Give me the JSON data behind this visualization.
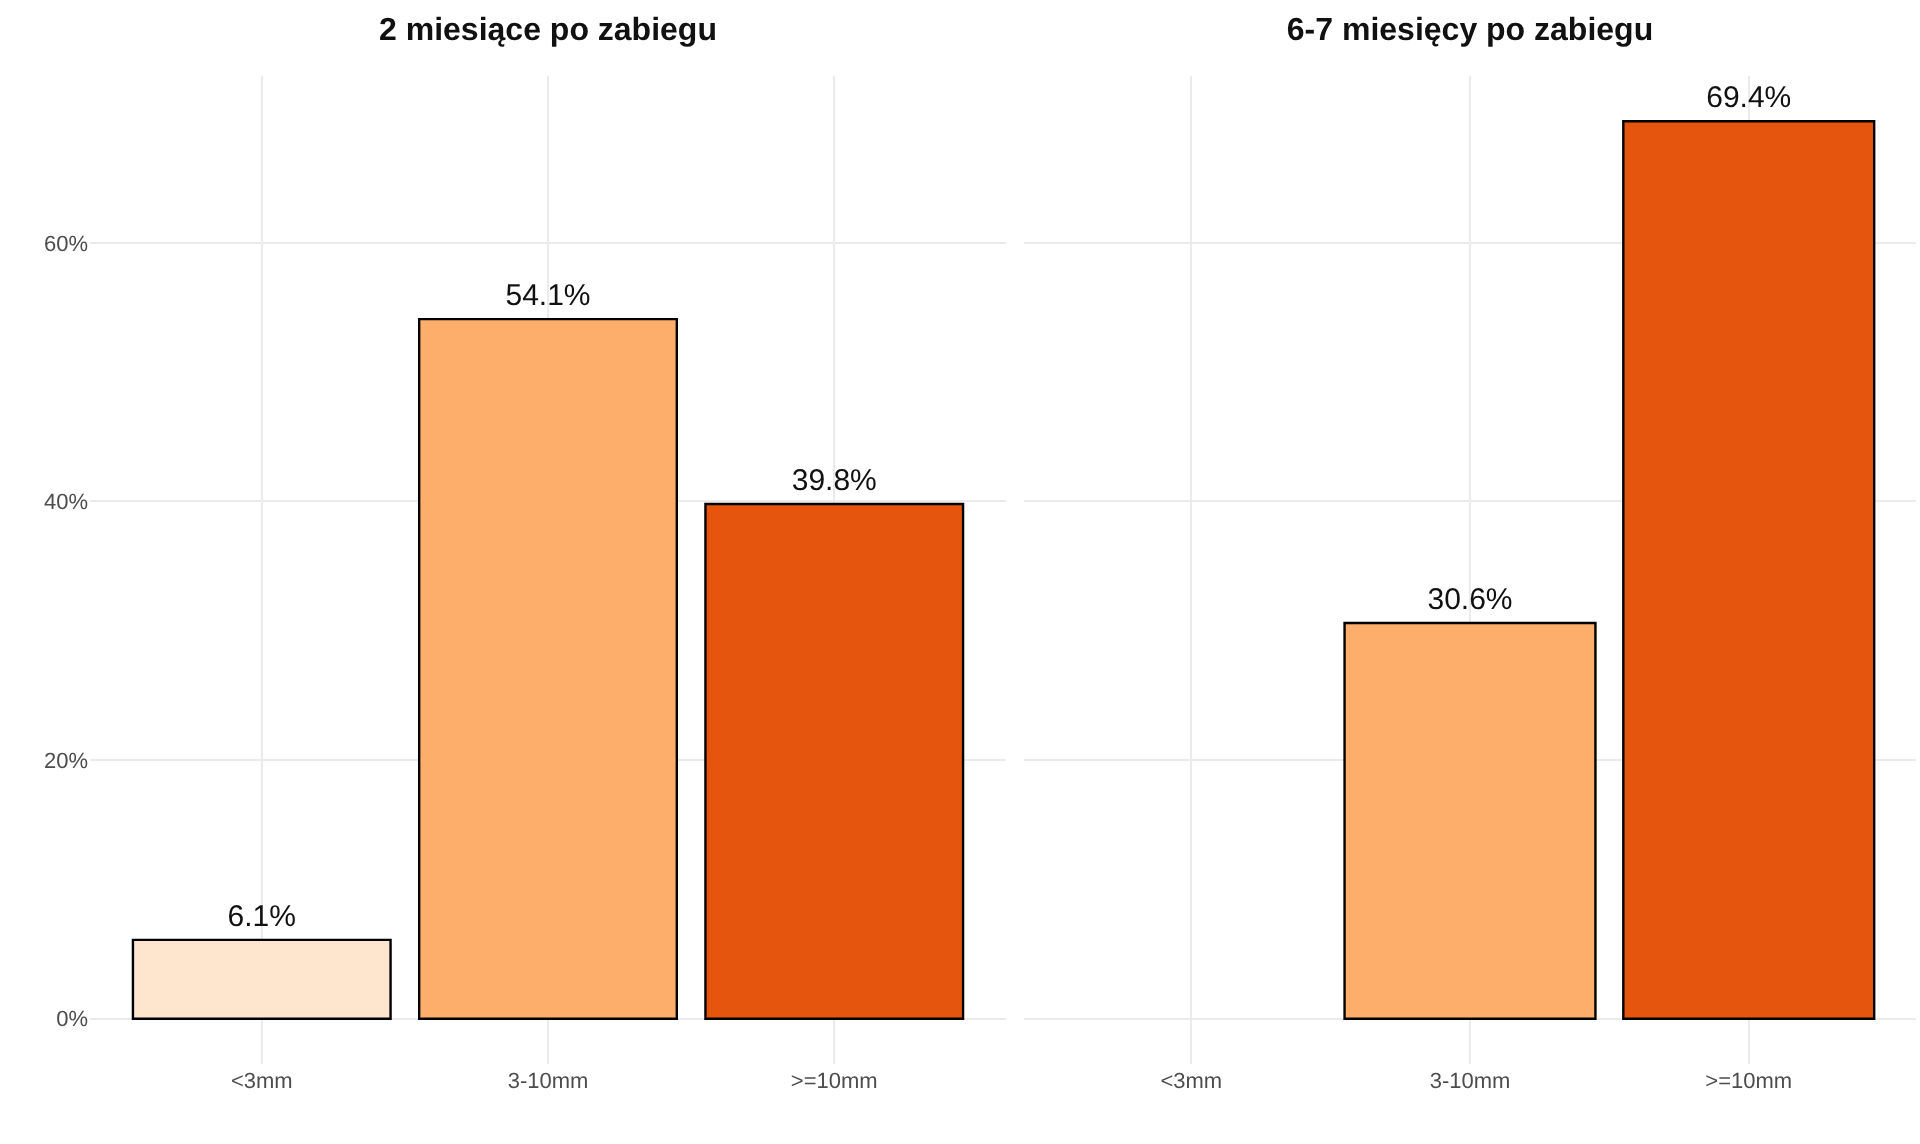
{
  "chart_data": [
    {
      "type": "bar",
      "title": "2 miesiące po zabiegu",
      "categories": [
        "<3mm",
        "3-10mm",
        ">=10mm"
      ],
      "values": [
        6.1,
        54.1,
        39.8
      ],
      "value_labels": [
        "6.1%",
        "54.1%",
        "39.8%"
      ],
      "colors": [
        "#fee6ce",
        "#fdae6b",
        "#e6550d"
      ],
      "ylim": [
        -3.5,
        72.9
      ],
      "yticks": [
        {
          "value": 0,
          "label": "0%"
        },
        {
          "value": 20,
          "label": "20%"
        },
        {
          "value": 40,
          "label": "40%"
        },
        {
          "value": 60,
          "label": "60%"
        }
      ],
      "grid": true,
      "legend": false
    },
    {
      "type": "bar",
      "title": "6-7 miesięcy po zabiegu",
      "categories": [
        "<3mm",
        "3-10mm",
        ">=10mm"
      ],
      "values": [
        null,
        30.6,
        69.4
      ],
      "value_labels": [
        null,
        "30.6%",
        "69.4%"
      ],
      "colors": [
        "#fee6ce",
        "#fdae6b",
        "#e6550d"
      ],
      "ylim": [
        -3.5,
        72.9
      ],
      "yticks": [
        {
          "value": 0,
          "label": null
        },
        {
          "value": 20,
          "label": null
        },
        {
          "value": 40,
          "label": null
        },
        {
          "value": 60,
          "label": null
        }
      ],
      "grid": true,
      "legend": false,
      "tick_labels": "x"
    }
  ]
}
